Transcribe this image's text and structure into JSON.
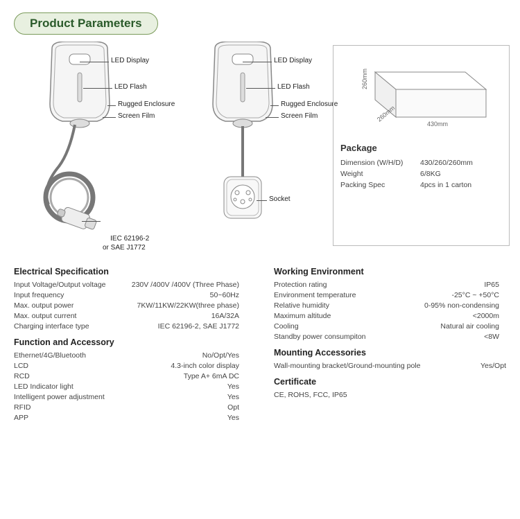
{
  "title": "Product Parameters",
  "callouts": {
    "led_display": "LED Display",
    "led_flash": "LED Flash",
    "rugged": "Rugged Enclosure",
    "screen_film": "Screen Film",
    "plug": "IEC 62196-2\nor SAE J1772",
    "socket": "Socket"
  },
  "package": {
    "title": "Package",
    "dims": {
      "w": "430mm",
      "h": "260mm",
      "d": "260mm"
    },
    "rows": [
      {
        "label": "Dimension (W/H/D)",
        "value": "430/260/260mm"
      },
      {
        "label": "Weight",
        "value": "6/8KG"
      },
      {
        "label": "Packing Spec",
        "value": "4pcs in 1 carton"
      }
    ]
  },
  "sections": {
    "electrical": {
      "title": "Electrical Specification",
      "rows": [
        {
          "label": "Input Voltage/Output voltage",
          "value": "230V /400V /400V (Three Phase)"
        },
        {
          "label": "Input frequency",
          "value": "50~60Hz"
        },
        {
          "label": "Max. output power",
          "value": "7KW/11KW/22KW(three phase)"
        },
        {
          "label": "Max. output current",
          "value": "16A/32A"
        },
        {
          "label": "Charging interface type",
          "value": "IEC 62196-2, SAE J1772"
        }
      ]
    },
    "func": {
      "title": "Function and Accessory",
      "rows": [
        {
          "label": "Ethernet/4G/Bluetooth",
          "value": "No/Opt/Yes"
        },
        {
          "label": "LCD",
          "value": "4.3-inch color display"
        },
        {
          "label": "RCD",
          "value": "Type A+ 6mA DC"
        },
        {
          "label": "LED Indicator light",
          "value": "Yes"
        },
        {
          "label": "Intelligent power adjustment",
          "value": "Yes"
        },
        {
          "label": "RFID",
          "value": "Opt"
        },
        {
          "label": "APP",
          "value": "Yes"
        }
      ]
    },
    "env": {
      "title": "Working Environment",
      "rows": [
        {
          "label": "Protection rating",
          "value": "IP65"
        },
        {
          "label": "Environment temperature",
          "value": "-25°C ~ +50°C"
        },
        {
          "label": "Relative humidity",
          "value": "0-95% non-condensing"
        },
        {
          "label": "Maximum altitude",
          "value": "<2000m"
        },
        {
          "label": "Cooling",
          "value": "Natural air cooling"
        },
        {
          "label": "Standby power consumpiton",
          "value": "<8W"
        }
      ]
    },
    "mount": {
      "title": "Mounting Accessories",
      "rows": [
        {
          "label": "Wall-mounting bracket/Ground-mounting pole",
          "value": "Yes/Opt"
        }
      ]
    },
    "cert": {
      "title": "Certificate",
      "text": "CE, ROHS, FCC, IP65"
    }
  },
  "colors": {
    "accent": "#2a5a2a",
    "pill_bg": "#e8f0e0",
    "pill_border": "#7a9a5a",
    "line": "#555555",
    "box_border": "#bbbbbb",
    "text": "#333333"
  }
}
